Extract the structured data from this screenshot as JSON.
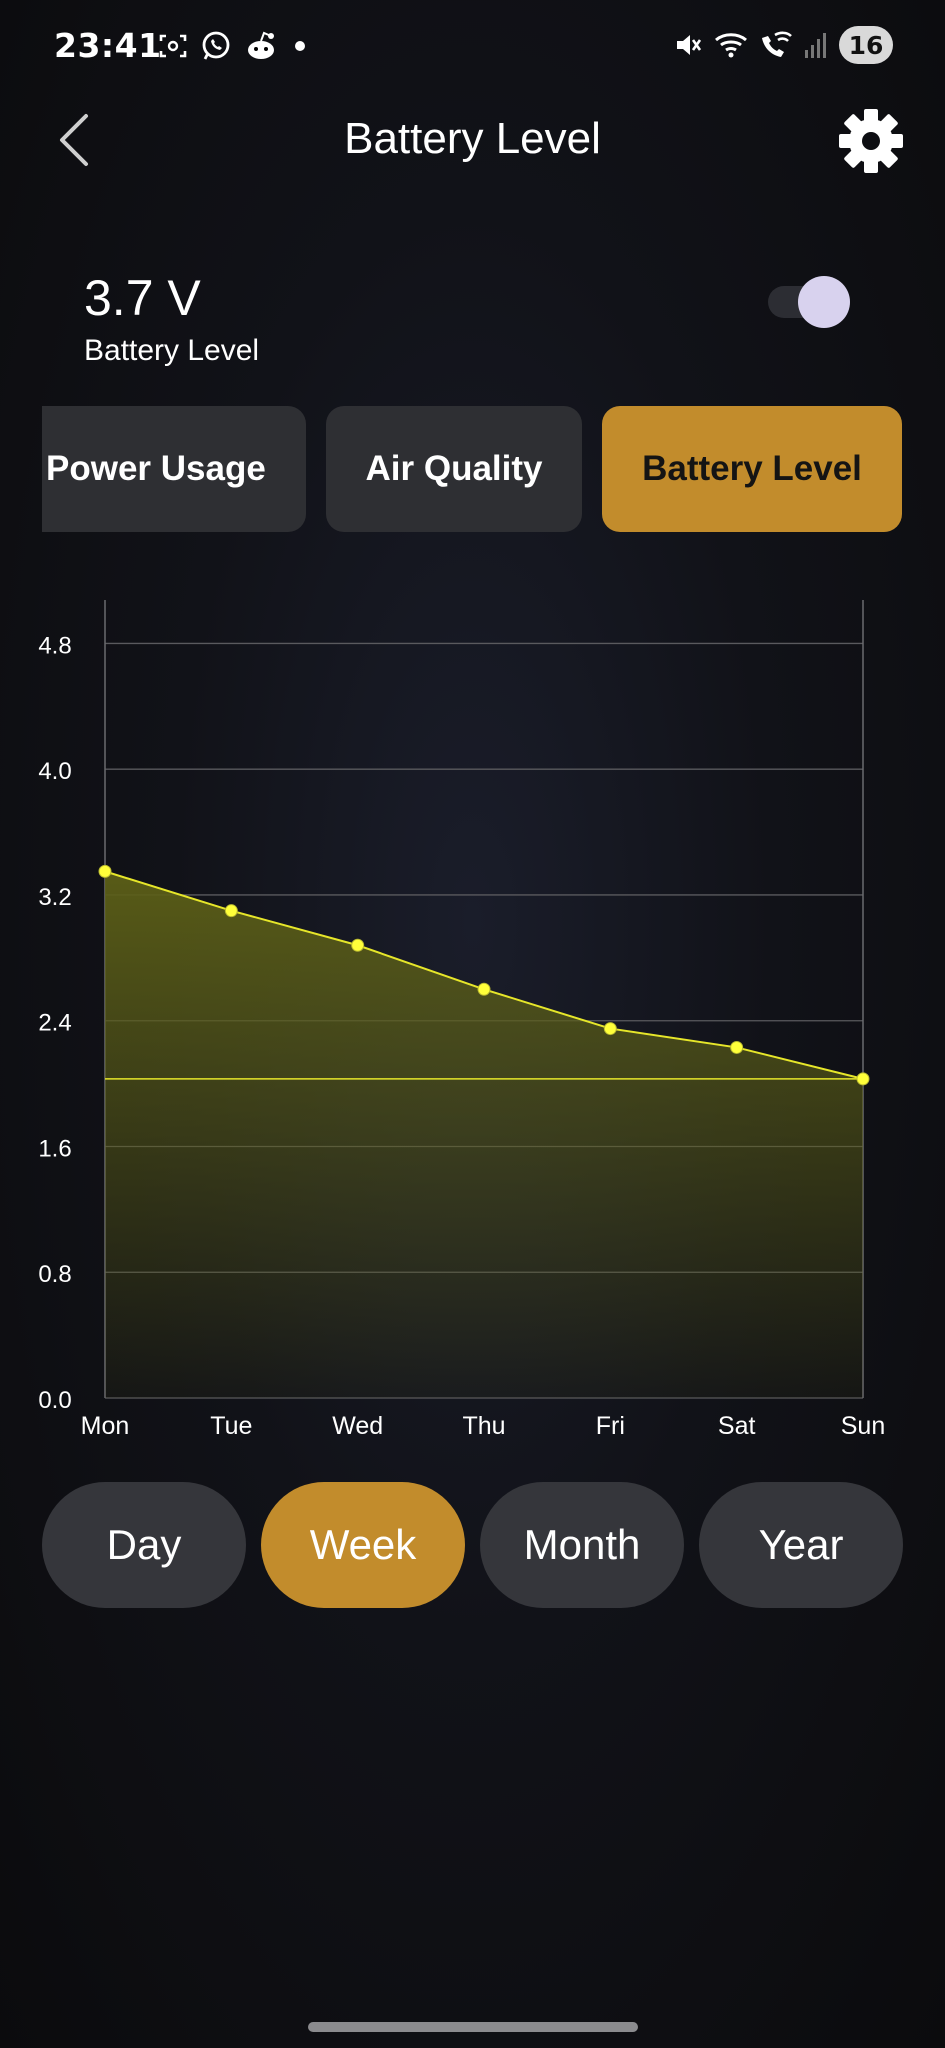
{
  "status_bar": {
    "time": "23:41",
    "left_icons": [
      "screenshot-icon",
      "whatsapp-icon",
      "reddit-icon",
      "dot-icon"
    ],
    "right_icons": [
      "mute-icon",
      "wifi-icon",
      "wifi-calling-icon",
      "signal-icon"
    ],
    "battery": "16"
  },
  "header": {
    "title": "Battery Level",
    "back_icon": "chevron-left-icon",
    "settings_icon": "gear-icon"
  },
  "reading": {
    "value": "3.7 V",
    "label": "Battery Level",
    "toggle_on": true
  },
  "tabs": [
    {
      "label": "Power Usage",
      "active": false
    },
    {
      "label": "Air Quality",
      "active": false
    },
    {
      "label": "Battery Level",
      "active": true
    }
  ],
  "range_tabs": [
    {
      "label": "Day",
      "active": false
    },
    {
      "label": "Week",
      "active": true
    },
    {
      "label": "Month",
      "active": false
    },
    {
      "label": "Year",
      "active": false
    }
  ],
  "colors": {
    "accent": "#c28c2c",
    "line": "#e6e62a",
    "fill": "#5c5f17",
    "point": "#ffff3a"
  },
  "chart_data": {
    "type": "area",
    "categories": [
      "Mon",
      "Tue",
      "Wed",
      "Thu",
      "Fri",
      "Sat",
      "Sun"
    ],
    "values": [
      3.35,
      3.1,
      2.88,
      2.6,
      2.35,
      2.23,
      2.03
    ],
    "y_ticks": [
      "0.0",
      "0.8",
      "1.6",
      "2.4",
      "3.2",
      "4.0",
      "4.8"
    ],
    "ylim": [
      0,
      5
    ],
    "reference_line": 2.03,
    "grid": true,
    "title": "",
    "xlabel": "",
    "ylabel": ""
  }
}
